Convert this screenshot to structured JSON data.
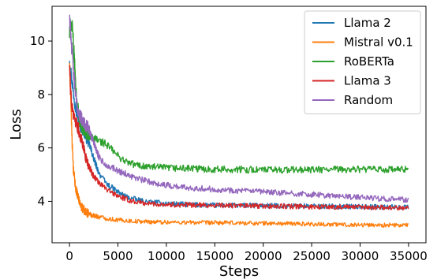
{
  "chart_data": {
    "type": "line",
    "xlabel": "Steps",
    "ylabel": "Loss",
    "xlim": [
      -1800,
      36800
    ],
    "ylim": [
      2.45,
      11.3
    ],
    "xticks": [
      0,
      5000,
      10000,
      15000,
      20000,
      25000,
      30000,
      35000
    ],
    "yticks": [
      4,
      6,
      8,
      10
    ],
    "grid": false,
    "legend_position": "top-right",
    "series": [
      {
        "name": "Llama 2",
        "color": "#1f77b4",
        "x": [
          0,
          150,
          400,
          700,
          1000,
          1500,
          2000,
          2500,
          3000,
          3500,
          4000,
          5000,
          6000,
          7000,
          8000,
          10000,
          12000,
          15000,
          20000,
          25000,
          30000,
          35000
        ],
        "y": [
          9.4,
          8.8,
          8.1,
          7.4,
          6.95,
          6.6,
          6.2,
          5.6,
          5.1,
          4.8,
          4.6,
          4.35,
          4.15,
          4.05,
          3.98,
          3.92,
          3.88,
          3.85,
          3.84,
          3.82,
          3.8,
          3.78
        ]
      },
      {
        "name": "Mistral v0.1",
        "color": "#ff7f0e",
        "x": [
          0,
          100,
          250,
          400,
          600,
          800,
          1000,
          1300,
          1700,
          2200,
          3000,
          4000,
          5000,
          7000,
          10000,
          15000,
          20000,
          25000,
          30000,
          35000
        ],
        "y": [
          9.05,
          8.2,
          6.4,
          5.2,
          4.6,
          4.25,
          4.0,
          3.75,
          3.6,
          3.5,
          3.42,
          3.35,
          3.3,
          3.25,
          3.22,
          3.2,
          3.18,
          3.15,
          3.12,
          3.1
        ]
      },
      {
        "name": "RoBERTa",
        "color": "#2ca02c",
        "x": [
          0,
          100,
          300,
          500,
          700,
          1000,
          1300,
          1700,
          2200,
          2800,
          3500,
          4200,
          5000,
          6000,
          7000,
          8000,
          10000,
          15000,
          20000,
          25000,
          30000,
          35000
        ],
        "y": [
          10.2,
          10.75,
          10.4,
          9.3,
          8.0,
          7.1,
          6.8,
          6.55,
          6.4,
          6.3,
          6.2,
          6.0,
          5.7,
          5.45,
          5.35,
          5.3,
          5.25,
          5.2,
          5.18,
          5.18,
          5.2,
          5.18
        ]
      },
      {
        "name": "Llama 3",
        "color": "#d62728",
        "x": [
          0,
          100,
          250,
          400,
          600,
          900,
          1300,
          1800,
          2400,
          3000,
          4000,
          5000,
          6000,
          7000,
          8000,
          10000,
          15000,
          20000,
          25000,
          30000,
          35000
        ],
        "y": [
          9.1,
          8.3,
          7.5,
          7.25,
          7.05,
          6.75,
          6.2,
          5.5,
          5.0,
          4.7,
          4.4,
          4.2,
          4.05,
          3.97,
          3.92,
          3.88,
          3.85,
          3.82,
          3.8,
          3.78,
          3.76
        ]
      },
      {
        "name": "Random",
        "color": "#9467bd",
        "x": [
          0,
          150,
          400,
          700,
          1000,
          1400,
          2000,
          2500,
          3000,
          3500,
          4000,
          5000,
          6000,
          7000,
          8000,
          10000,
          12000,
          15000,
          20000,
          25000,
          30000,
          35000
        ],
        "y": [
          11.0,
          10.2,
          8.9,
          7.7,
          7.25,
          7.0,
          6.7,
          6.2,
          5.7,
          5.45,
          5.35,
          5.15,
          5.0,
          4.85,
          4.75,
          4.6,
          4.52,
          4.45,
          4.35,
          4.25,
          4.15,
          4.05
        ]
      }
    ]
  }
}
